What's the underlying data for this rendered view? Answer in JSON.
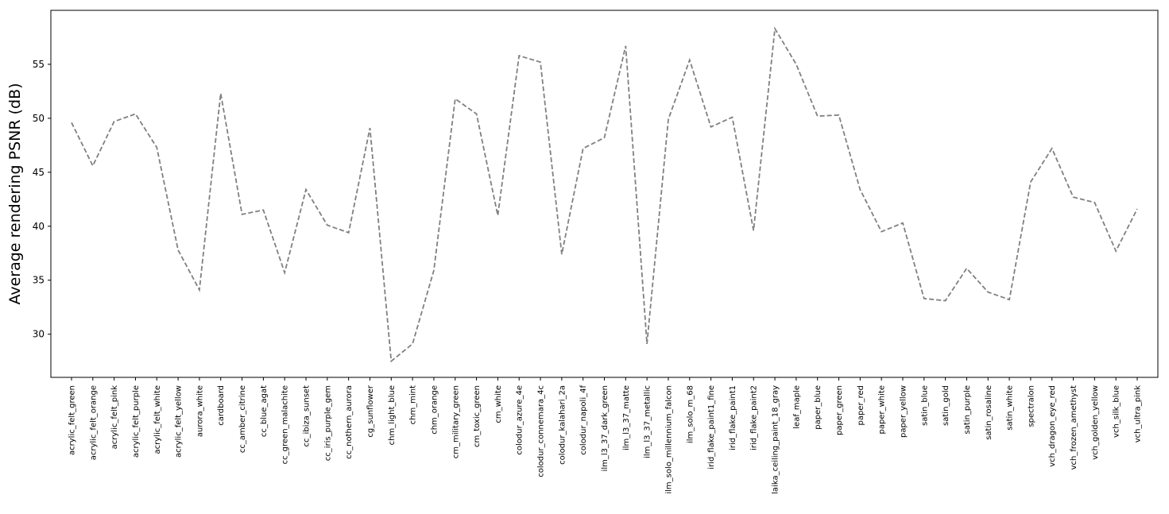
{
  "chart_data": {
    "type": "line",
    "ylabel": "Average rendering PSNR (dB)",
    "xlabel": "",
    "ylim": [
      26,
      60
    ],
    "yticks": [
      30,
      35,
      40,
      45,
      50,
      55
    ],
    "grid": false,
    "line_color": "#808080",
    "line_style": "dashed",
    "categories": [
      "acrylic_felt_green",
      "acrylic_felt_orange",
      "acrylic_felt_pink",
      "acrylic_felt_purple",
      "acrylic_felt_white",
      "acrylic_felt_yellow",
      "aurora_white",
      "cardboard",
      "cc_amber_citrine",
      "cc_blue_agat",
      "cc_green_malachite",
      "cc_ibiza_sunset",
      "cc_iris_purple_gem",
      "cc_nothern_aurora",
      "cg_sunflower",
      "chm_light_blue",
      "chm_mint",
      "chm_orange",
      "cm_military_green",
      "cm_toxic_green",
      "cm_white",
      "colodur_azure_4e",
      "colodur_connemara_4c",
      "colodur_kalahari_2a",
      "colodur_napoli_4f",
      "ilm_l3_37_dark_green",
      "ilm_l3_37_matte",
      "ilm_l3_37_metallic",
      "ilm_solo_millennium_falcon",
      "ilm_solo_m_68",
      "irid_flake_paint1_fine",
      "irid_flake_paint1",
      "irid_flake_paint2",
      "laika_ceiling_paint_18_gray",
      "leaf_maple",
      "paper_blue",
      "paper_green",
      "paper_red",
      "paper_white",
      "paper_yellow",
      "satin_blue",
      "satin_gold",
      "satin_purple",
      "satin_rosaline",
      "satin_white",
      "spectralon",
      "vch_dragon_eye_red",
      "vch_frozen_amethyst",
      "vch_golden_yellow",
      "vch_silk_blue",
      "vch_ultra_pink"
    ],
    "series": [
      {
        "values": [
          49.6,
          45.6,
          49.7,
          50.4,
          47.3,
          37.8,
          34.1,
          52.3,
          41.1,
          41.5,
          35.7,
          43.4,
          40.1,
          39.4,
          49.1,
          27.5,
          29.1,
          35.9,
          51.8,
          50.4,
          41.0,
          55.8,
          55.2,
          37.4,
          47.2,
          48.2,
          56.7,
          29.1,
          49.9,
          55.4,
          49.2,
          50.1,
          39.6,
          58.3,
          55.0,
          50.2,
          50.3,
          43.4,
          39.5,
          40.3,
          33.3,
          33.1,
          36.1,
          33.9,
          33.2,
          44.1,
          47.2,
          42.7,
          42.2,
          37.7,
          41.6
        ]
      }
    ]
  }
}
